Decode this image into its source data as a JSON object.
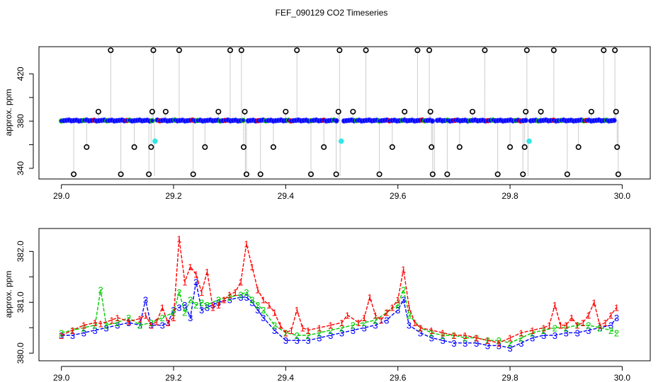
{
  "figure": {
    "title": "FEF_090129  CO2 Timeseries"
  },
  "colors": {
    "series_1": "#ff0000",
    "series_2": "#00cc00",
    "series_3": "#0000ff",
    "blue_fill": "#0000ff",
    "cyan_point": "#33e6e6",
    "dropout": "#000000",
    "gray_line": "#9a9a9a",
    "axis": "#000000"
  },
  "chart_data": [
    {
      "type": "scatter",
      "title": "",
      "xlabel": "",
      "ylabel": "approx. ppm",
      "xlim": [
        28.96,
        30.05
      ],
      "ylim": [
        331,
        443
      ],
      "x_ticks": [
        "29.0",
        "29.2",
        "29.4",
        "29.6",
        "29.8",
        "30.0"
      ],
      "x_tick_values": [
        29.0,
        29.2,
        29.4,
        29.6,
        29.8,
        30.0
      ],
      "y_ticks": [
        "340",
        "380",
        "420"
      ],
      "y_tick_values": [
        340,
        380,
        420
      ],
      "y_minor_ticks": [
        360,
        400
      ],
      "marker": "open circle",
      "grid": false,
      "baseline_ppm": 380.5,
      "x_range": [
        29.0,
        29.99
      ],
      "gaps": [
        29.166,
        29.328,
        29.497,
        29.665,
        29.832
      ],
      "dropouts": [
        {
          "x": 29.022,
          "y": 335
        },
        {
          "x": 29.045,
          "y": 358
        },
        {
          "x": 29.066,
          "y": 388
        },
        {
          "x": 29.088,
          "y": 440
        },
        {
          "x": 29.106,
          "y": 335
        },
        {
          "x": 29.13,
          "y": 358
        },
        {
          "x": 29.156,
          "y": 335
        },
        {
          "x": 29.16,
          "y": 358
        },
        {
          "x": 29.162,
          "y": 388
        },
        {
          "x": 29.164,
          "y": 440
        },
        {
          "x": 29.186,
          "y": 388
        },
        {
          "x": 29.21,
          "y": 440
        },
        {
          "x": 29.235,
          "y": 335
        },
        {
          "x": 29.256,
          "y": 358
        },
        {
          "x": 29.28,
          "y": 388
        },
        {
          "x": 29.301,
          "y": 440
        },
        {
          "x": 29.321,
          "y": 440
        },
        {
          "x": 29.325,
          "y": 358
        },
        {
          "x": 29.327,
          "y": 388
        },
        {
          "x": 29.33,
          "y": 335
        },
        {
          "x": 29.355,
          "y": 335
        },
        {
          "x": 29.378,
          "y": 358
        },
        {
          "x": 29.4,
          "y": 388
        },
        {
          "x": 29.42,
          "y": 440
        },
        {
          "x": 29.445,
          "y": 335
        },
        {
          "x": 29.468,
          "y": 358
        },
        {
          "x": 29.49,
          "y": 335
        },
        {
          "x": 29.494,
          "y": 388
        },
        {
          "x": 29.496,
          "y": 440
        },
        {
          "x": 29.52,
          "y": 388
        },
        {
          "x": 29.543,
          "y": 440
        },
        {
          "x": 29.567,
          "y": 335
        },
        {
          "x": 29.59,
          "y": 358
        },
        {
          "x": 29.612,
          "y": 388
        },
        {
          "x": 29.635,
          "y": 440
        },
        {
          "x": 29.656,
          "y": 440
        },
        {
          "x": 29.658,
          "y": 388
        },
        {
          "x": 29.66,
          "y": 358
        },
        {
          "x": 29.662,
          "y": 335
        },
        {
          "x": 29.688,
          "y": 335
        },
        {
          "x": 29.71,
          "y": 358
        },
        {
          "x": 29.733,
          "y": 388
        },
        {
          "x": 29.755,
          "y": 440
        },
        {
          "x": 29.778,
          "y": 335
        },
        {
          "x": 29.8,
          "y": 358
        },
        {
          "x": 29.823,
          "y": 335
        },
        {
          "x": 29.826,
          "y": 358
        },
        {
          "x": 29.828,
          "y": 388
        },
        {
          "x": 29.83,
          "y": 440
        },
        {
          "x": 29.855,
          "y": 388
        },
        {
          "x": 29.878,
          "y": 440
        },
        {
          "x": 29.902,
          "y": 335
        },
        {
          "x": 29.922,
          "y": 358
        },
        {
          "x": 29.945,
          "y": 388
        },
        {
          "x": 29.967,
          "y": 440
        },
        {
          "x": 29.987,
          "y": 440
        },
        {
          "x": 29.989,
          "y": 388
        },
        {
          "x": 29.991,
          "y": 358
        },
        {
          "x": 29.993,
          "y": 335
        }
      ],
      "highlighted_points": [
        {
          "x": 29.167,
          "y": 363
        },
        {
          "x": 29.499,
          "y": 363
        },
        {
          "x": 29.834,
          "y": 363
        }
      ]
    },
    {
      "type": "line",
      "title": "",
      "xlabel": "",
      "ylabel": "approx. ppm",
      "xlim": [
        28.96,
        30.05
      ],
      "ylim": [
        379.85,
        382.45
      ],
      "x_ticks": [
        "29.0",
        "29.2",
        "29.4",
        "29.6",
        "29.8",
        "30.0"
      ],
      "x_tick_values": [
        29.0,
        29.2,
        29.4,
        29.6,
        29.8,
        30.0
      ],
      "y_ticks": [
        "380.0",
        "381.0",
        "382.0"
      ],
      "y_tick_values": [
        380.0,
        381.0,
        382.0
      ],
      "y_minor_ticks": [
        380.5,
        381.5
      ],
      "grid": false,
      "marker": "digit",
      "series": [
        {
          "name": "1",
          "marker": "1",
          "x": [
            29.0,
            29.02,
            29.04,
            29.06,
            29.07,
            29.09,
            29.1,
            29.12,
            29.14,
            29.15,
            29.16,
            29.17,
            29.18,
            29.19,
            29.2,
            29.21,
            29.22,
            29.23,
            29.24,
            29.25,
            29.26,
            29.27,
            29.28,
            29.29,
            29.3,
            29.31,
            29.32,
            29.33,
            29.34,
            29.35,
            29.36,
            29.37,
            29.38,
            29.39,
            29.4,
            29.41,
            29.42,
            29.43,
            29.44,
            29.46,
            29.48,
            29.5,
            29.51,
            29.53,
            29.54,
            29.55,
            29.56,
            29.57,
            29.58,
            29.59,
            29.6,
            29.61,
            29.62,
            29.63,
            29.64,
            29.66,
            29.68,
            29.7,
            29.72,
            29.74,
            29.76,
            29.78,
            29.8,
            29.82,
            29.84,
            29.86,
            29.87,
            29.88,
            29.89,
            29.9,
            29.91,
            29.92,
            29.93,
            29.94,
            29.95,
            29.96,
            29.97,
            29.98,
            29.99
          ],
          "values": [
            380.35,
            380.45,
            380.55,
            380.6,
            380.58,
            380.65,
            380.7,
            380.62,
            380.68,
            380.75,
            380.55,
            380.62,
            380.9,
            380.6,
            380.7,
            382.25,
            381.4,
            381.7,
            381.55,
            381.2,
            381.6,
            380.9,
            380.95,
            381.05,
            381.15,
            381.2,
            381.4,
            382.15,
            381.7,
            381.25,
            381.05,
            380.95,
            380.8,
            380.55,
            380.4,
            380.45,
            380.85,
            380.5,
            380.45,
            380.5,
            380.55,
            380.6,
            380.75,
            380.6,
            380.7,
            381.1,
            380.75,
            380.65,
            380.8,
            380.9,
            381.05,
            381.65,
            380.9,
            380.6,
            380.5,
            380.45,
            380.4,
            380.35,
            380.35,
            380.3,
            380.25,
            380.2,
            380.3,
            380.4,
            380.45,
            380.5,
            380.55,
            380.95,
            380.55,
            380.55,
            380.7,
            380.55,
            380.6,
            380.75,
            381.0,
            380.55,
            380.6,
            380.75,
            380.9
          ]
        },
        {
          "name": "2",
          "marker": "2",
          "x": [
            29.0,
            29.02,
            29.04,
            29.06,
            29.07,
            29.08,
            29.1,
            29.12,
            29.14,
            29.16,
            29.18,
            29.2,
            29.21,
            29.22,
            29.23,
            29.24,
            29.25,
            29.26,
            29.28,
            29.3,
            29.32,
            29.33,
            29.34,
            29.35,
            29.36,
            29.38,
            29.4,
            29.42,
            29.44,
            29.46,
            29.48,
            29.5,
            29.52,
            29.54,
            29.56,
            29.58,
            29.6,
            29.61,
            29.62,
            29.64,
            29.66,
            29.68,
            29.7,
            29.72,
            29.74,
            29.76,
            29.78,
            29.8,
            29.82,
            29.84,
            29.86,
            29.88,
            29.9,
            29.92,
            29.94,
            29.96,
            29.98,
            29.99
          ],
          "values": [
            380.4,
            380.45,
            380.5,
            380.55,
            381.25,
            380.55,
            380.6,
            380.7,
            380.55,
            380.6,
            380.7,
            380.8,
            381.2,
            380.8,
            381.05,
            380.95,
            381.0,
            380.95,
            381.05,
            381.1,
            381.15,
            381.2,
            381.05,
            380.95,
            380.85,
            380.55,
            380.4,
            380.35,
            380.35,
            380.4,
            380.45,
            380.5,
            380.55,
            380.6,
            380.65,
            380.8,
            380.95,
            381.25,
            380.75,
            380.5,
            380.4,
            380.35,
            380.35,
            380.3,
            380.3,
            380.25,
            380.25,
            380.2,
            380.3,
            380.4,
            380.45,
            380.5,
            380.5,
            380.55,
            380.55,
            380.5,
            380.45,
            380.4
          ]
        },
        {
          "name": "3",
          "marker": "3",
          "x": [
            29.0,
            29.02,
            29.04,
            29.06,
            29.08,
            29.1,
            29.12,
            29.14,
            29.15,
            29.16,
            29.18,
            29.19,
            29.2,
            29.21,
            29.22,
            29.23,
            29.24,
            29.25,
            29.26,
            29.27,
            29.28,
            29.3,
            29.32,
            29.33,
            29.34,
            29.35,
            29.36,
            29.38,
            29.4,
            29.42,
            29.44,
            29.46,
            29.48,
            29.5,
            29.52,
            29.54,
            29.56,
            29.58,
            29.6,
            29.61,
            29.62,
            29.64,
            29.66,
            29.68,
            29.7,
            29.72,
            29.74,
            29.76,
            29.78,
            29.8,
            29.82,
            29.84,
            29.86,
            29.88,
            29.9,
            29.92,
            29.94,
            29.96,
            29.98,
            29.99
          ],
          "values": [
            380.35,
            380.35,
            380.4,
            380.45,
            380.5,
            380.55,
            380.6,
            380.55,
            381.05,
            380.55,
            380.55,
            380.6,
            380.85,
            380.9,
            380.95,
            380.7,
            381.4,
            380.85,
            380.9,
            380.95,
            381.0,
            381.05,
            381.1,
            381.1,
            381.0,
            380.85,
            380.7,
            380.45,
            380.25,
            380.25,
            380.25,
            380.3,
            380.35,
            380.4,
            380.45,
            380.5,
            380.55,
            380.65,
            380.85,
            381.05,
            380.55,
            380.4,
            380.3,
            380.25,
            380.2,
            380.2,
            380.2,
            380.15,
            380.15,
            380.1,
            380.2,
            380.3,
            380.35,
            380.35,
            380.4,
            380.4,
            380.45,
            380.5,
            380.55,
            380.7
          ]
        }
      ]
    }
  ]
}
